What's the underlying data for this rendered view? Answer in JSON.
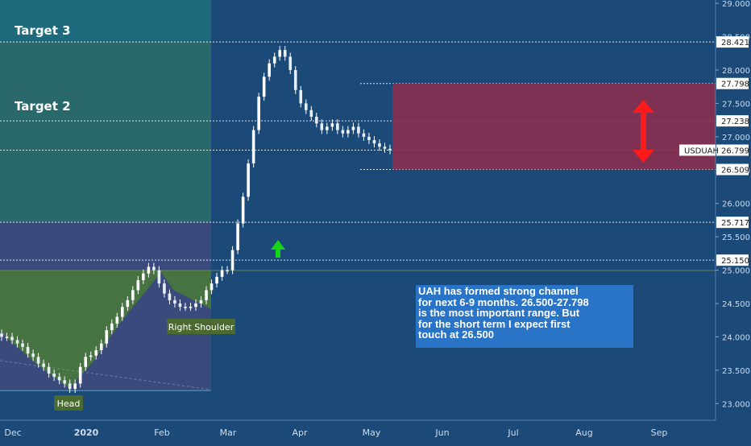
{
  "chart_data": {
    "type": "candlestick",
    "symbol": "USDUAH",
    "x_labels": [
      "Dec",
      "2020",
      "Feb",
      "Mar",
      "Apr",
      "May",
      "Jun",
      "Jul",
      "Aug",
      "Sep"
    ],
    "y_ticks": [
      "23.000",
      "23.500",
      "24.000",
      "24.500",
      "25.000",
      "25.500",
      "26.000",
      "26.500",
      "27.000",
      "27.500",
      "28.000",
      "28.500",
      "29.000"
    ],
    "ylim": [
      22.75,
      29.05
    ],
    "price_labels": [
      "28.421",
      "27.798",
      "27.238",
      "26.799",
      "26.509",
      "25.717",
      "25.150"
    ],
    "levels": [
      28.421,
      27.798,
      27.238,
      26.799,
      26.509,
      25.717,
      25.15
    ],
    "last_price": 26.799,
    "zones": [
      {
        "label": "Target 3",
        "from": 28.421,
        "to": 29.05,
        "color": "#1d6b7d"
      },
      {
        "label": "Target 2",
        "from": 25.717,
        "to": 28.421,
        "color": "#2a6a6a"
      },
      {
        "label": "",
        "from": 23.22,
        "to": 25.717,
        "color": "#3d4a7c"
      }
    ],
    "resistance_box": {
      "from": 26.509,
      "to": 27.798,
      "color": "#8a2f4f"
    },
    "annotations": [
      {
        "label": "Head",
        "close": 23.22
      },
      {
        "label": "Right Shoulder",
        "close": 24.45
      }
    ],
    "closes": [
      24.0,
      24.0,
      23.95,
      23.9,
      23.85,
      23.75,
      23.7,
      23.6,
      23.55,
      23.45,
      23.4,
      23.35,
      23.3,
      23.22,
      23.3,
      23.55,
      23.7,
      23.72,
      23.8,
      23.9,
      24.1,
      24.2,
      24.3,
      24.45,
      24.55,
      24.7,
      24.85,
      24.95,
      25.05,
      25.0,
      24.8,
      24.65,
      24.55,
      24.5,
      24.45,
      24.45,
      24.45,
      24.5,
      24.55,
      24.7,
      24.8,
      24.9,
      25.0,
      25.0,
      25.3,
      25.7,
      26.1,
      26.6,
      27.1,
      27.6,
      27.9,
      28.1,
      28.2,
      28.3,
      28.2,
      28.0,
      27.7,
      27.5,
      27.4,
      27.3,
      27.2,
      27.1,
      27.15,
      27.2,
      27.1,
      27.05,
      27.1,
      27.15,
      27.05,
      27.0,
      26.95,
      26.9,
      26.85,
      26.82,
      26.799
    ]
  },
  "watermark_label": "",
  "note_text": "UAH has formed strong channel\nfor next 6-9 months. 26.500-27.798\nis the most important range. But\nfor the short term I expect first\ntouch at 26.500",
  "colors": {
    "background": "#1b4a78",
    "accent_green": "#18d418",
    "accent_red": "#ff1a1a",
    "candle": "#ffffff",
    "hs_fill": "#4a7a3a",
    "label_box": "#4a6a30"
  }
}
